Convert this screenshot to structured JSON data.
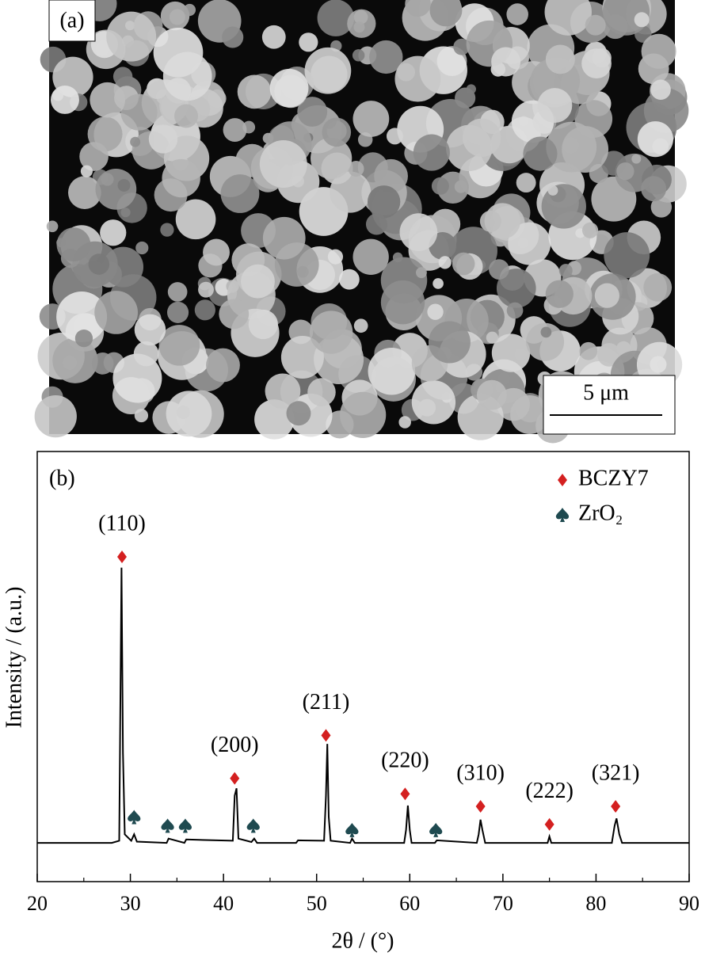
{
  "image": {
    "label": "(a)",
    "scale_bar": "5 μm"
  },
  "chart_data": {
    "type": "line",
    "panel_label": "(b)",
    "xlabel": "2θ / (°)",
    "ylabel": "Intensity / (a.u.)",
    "color": "#000000",
    "x": [
      20,
      24,
      28,
      28.8,
      29.05,
      29.2,
      29.4,
      30.1,
      30.4,
      30.7,
      33.9,
      34.1,
      35.8,
      36,
      41,
      41.2,
      41.4,
      41.6,
      43,
      43.3,
      43.6,
      47.8,
      48,
      50.8,
      51,
      51.15,
      51.3,
      51.5,
      53.6,
      53.8,
      54.1,
      59.4,
      59.6,
      59.8,
      60,
      60.2,
      62.7,
      62.9,
      67.2,
      67.4,
      67.6,
      67.8,
      68.1,
      74.8,
      75,
      75.2,
      81.7,
      82,
      82.2,
      82.5,
      82.8,
      86,
      90
    ],
    "values": [
      9,
      9,
      9,
      9.5,
      73,
      30,
      11,
      9.5,
      11,
      9.3,
      9,
      10,
      9,
      9.8,
      9.5,
      20,
      21.7,
      10,
      9.2,
      10,
      9,
      9,
      9.6,
      9.5,
      20,
      32,
      15,
      9.5,
      9,
      10,
      9,
      9,
      12,
      17.7,
      12,
      9,
      9,
      9.6,
      9,
      11,
      14.4,
      12,
      9,
      9,
      10.5,
      9,
      9,
      13,
      14.7,
      11,
      9,
      9,
      9
    ],
    "xlim": [
      20,
      90
    ],
    "xticks": [
      20,
      30,
      40,
      50,
      60,
      70,
      80,
      90
    ],
    "xminorticks": [
      25,
      35,
      45,
      55,
      65,
      75,
      85
    ],
    "ylim": [
      0,
      100
    ],
    "legend": "upper right",
    "markers": [
      {
        "name": "BCZY7",
        "color": "#d42020",
        "shape": "diamond",
        "x": [
          29.1,
          41.2,
          51,
          59.5,
          67.6,
          75,
          82.1
        ],
        "values": [
          75.5,
          24,
          34,
          20.4,
          17.5,
          13.3,
          17.5
        ],
        "peak_labels": [
          "(110)",
          "(200)",
          "(211)",
          "(220)",
          "(310)",
          "(222)",
          "(321)"
        ]
      },
      {
        "name": "ZrO₂",
        "color": "#1f4a50",
        "shape": "spade",
        "x": [
          30.4,
          34,
          35.9,
          43.2,
          53.8,
          62.8
        ],
        "values": [
          15,
          13,
          13,
          13,
          12,
          12
        ]
      }
    ]
  }
}
